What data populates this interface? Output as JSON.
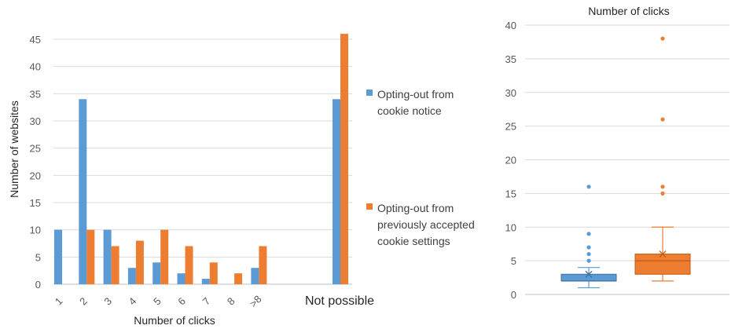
{
  "chart_data": [
    {
      "type": "bar",
      "title": "",
      "xlabel": "Number of clicks",
      "ylabel": "Number of websites",
      "ylim": [
        0,
        45
      ],
      "yticks": [
        "0",
        "5",
        "10",
        "15",
        "20",
        "25",
        "30",
        "35",
        "40",
        "45"
      ],
      "categories": [
        "1",
        "2",
        "3",
        "4",
        "5",
        "6",
        "7",
        "8",
        ">8"
      ],
      "extra_category": "Not possible",
      "grid": true,
      "legend_position": "right",
      "series": [
        {
          "name": "Opting-out from cookie notice",
          "legend_lines": [
            "Opting-out from",
            "cookie notice"
          ],
          "color": "#5B9BD5",
          "values": [
            10,
            34,
            10,
            3,
            4,
            2,
            1,
            0,
            3
          ],
          "extra_value": 34
        },
        {
          "name": "Opting-out from previously accepted cookie settings",
          "legend_lines": [
            "Opting-out from",
            "previously accepted",
            "cookie settings"
          ],
          "color": "#ED7D31",
          "values": [
            0,
            10,
            7,
            8,
            10,
            7,
            4,
            2,
            7
          ],
          "extra_value": 46
        }
      ]
    },
    {
      "type": "box",
      "title": "Number of clicks",
      "ylim": [
        0,
        40
      ],
      "yticks": [
        "0",
        "5",
        "10",
        "15",
        "20",
        "25",
        "30",
        "35",
        "40"
      ],
      "grid": true,
      "boxes": [
        {
          "color": "#5B9BD5",
          "min": 1,
          "q1": 2,
          "median": 2,
          "mean": 3,
          "q3": 3,
          "max": 4,
          "outliers": [
            5,
            6,
            7,
            9,
            16
          ]
        },
        {
          "color": "#ED7D31",
          "min": 2,
          "q1": 3,
          "median": 5,
          "mean": 6,
          "q3": 6,
          "max": 10,
          "outliers": [
            15,
            16,
            26,
            38
          ]
        }
      ]
    }
  ]
}
